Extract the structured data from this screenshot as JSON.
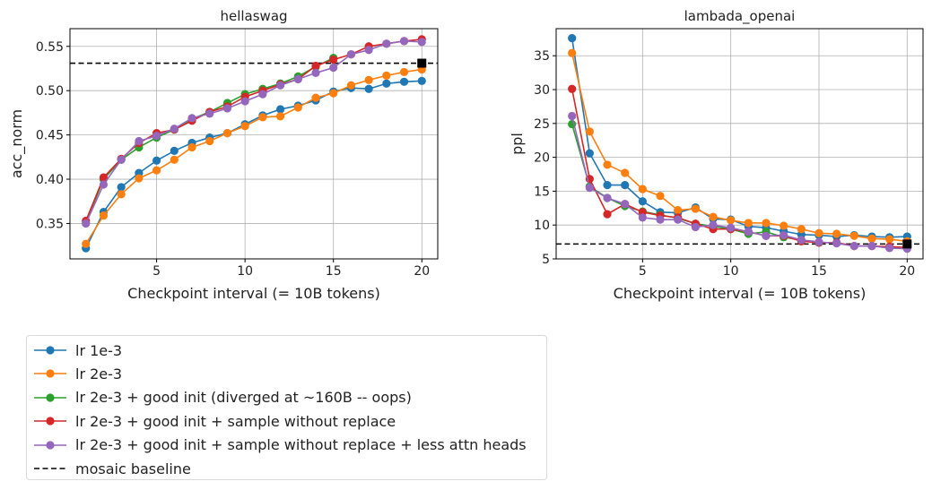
{
  "legend": {
    "items": [
      {
        "label": "lr 1e-3",
        "color": "#1f77b4",
        "style": "line-marker"
      },
      {
        "label": "lr 2e-3",
        "color": "#ff7f0e",
        "style": "line-marker"
      },
      {
        "label": "lr 2e-3 + good init (diverged at ~160B -- oops)",
        "color": "#2ca02c",
        "style": "line-marker"
      },
      {
        "label": "lr 2e-3 + good init + sample without replace",
        "color": "#d62728",
        "style": "line-marker"
      },
      {
        "label": "lr 2e-3 + good init + sample without replace + less attn heads",
        "color": "#9467bd",
        "style": "line-marker"
      },
      {
        "label": "mosaic baseline",
        "color": "#000000",
        "style": "dashed"
      }
    ]
  },
  "chart_data": [
    {
      "type": "line",
      "title": "hellaswag",
      "xlabel": "Checkpoint interval (= 10B tokens)",
      "ylabel": "acc_norm",
      "xlim": [
        0.1,
        20.9
      ],
      "ylim": [
        0.31,
        0.57
      ],
      "xticks": [
        5,
        10,
        15,
        20
      ],
      "yticks": [
        0.35,
        0.4,
        0.45,
        0.5,
        0.55
      ],
      "ytick_labels": [
        "0.35",
        "0.40",
        "0.45",
        "0.50",
        "0.55"
      ],
      "grid": true,
      "baseline": {
        "y": 0.531,
        "marker_x": 20
      },
      "series": [
        {
          "name": "lr 1e-3",
          "color": "#1f77b4",
          "x": [
            1,
            2,
            3,
            4,
            5,
            6,
            7,
            8,
            9,
            10,
            11,
            12,
            13,
            14,
            15,
            16,
            17,
            18,
            19,
            20
          ],
          "y": [
            0.322,
            0.363,
            0.391,
            0.407,
            0.421,
            0.432,
            0.441,
            0.447,
            0.452,
            0.462,
            0.472,
            0.479,
            0.483,
            0.489,
            0.499,
            0.503,
            0.502,
            0.508,
            0.51,
            0.511
          ]
        },
        {
          "name": "lr 2e-3",
          "color": "#ff7f0e",
          "x": [
            1,
            2,
            3,
            4,
            5,
            6,
            7,
            8,
            9,
            10,
            11,
            12,
            13,
            14,
            15,
            16,
            17,
            18,
            19,
            20
          ],
          "y": [
            0.327,
            0.359,
            0.383,
            0.401,
            0.41,
            0.422,
            0.436,
            0.443,
            0.452,
            0.46,
            0.47,
            0.471,
            0.481,
            0.492,
            0.497,
            0.506,
            0.512,
            0.517,
            0.521,
            0.524
          ]
        },
        {
          "name": "lr 2e-3 + good init (diverged at ~160B -- oops)",
          "color": "#2ca02c",
          "x": [
            1,
            2,
            3,
            4,
            5,
            6,
            7,
            8,
            9,
            10,
            11,
            12,
            13,
            14,
            15
          ],
          "y": [
            0.351,
            0.4,
            0.422,
            0.436,
            0.447,
            0.456,
            0.468,
            0.476,
            0.486,
            0.496,
            0.502,
            0.508,
            0.516,
            0.527,
            0.537
          ]
        },
        {
          "name": "lr 2e-3 + good init + sample without replace",
          "color": "#d62728",
          "x": [
            1,
            2,
            3,
            4,
            5,
            6,
            7,
            8,
            9,
            10,
            11,
            12,
            13,
            14,
            15,
            16,
            17,
            18,
            19,
            20
          ],
          "y": [
            0.353,
            0.402,
            0.423,
            0.441,
            0.452,
            0.456,
            0.466,
            0.476,
            0.482,
            0.493,
            0.5,
            0.507,
            0.513,
            0.528,
            0.535,
            0.541,
            0.55,
            0.553,
            0.556,
            0.558
          ]
        },
        {
          "name": "lr 2e-3 + good init + sample without replace + less attn heads",
          "color": "#9467bd",
          "x": [
            1,
            2,
            3,
            4,
            5,
            6,
            7,
            8,
            9,
            10,
            11,
            12,
            13,
            14,
            15,
            16,
            17,
            18,
            19,
            20
          ],
          "y": [
            0.35,
            0.394,
            0.422,
            0.443,
            0.449,
            0.457,
            0.469,
            0.474,
            0.48,
            0.488,
            0.496,
            0.506,
            0.513,
            0.52,
            0.526,
            0.541,
            0.546,
            0.553,
            0.556,
            0.555
          ]
        }
      ]
    },
    {
      "type": "line",
      "title": "lambada_openai",
      "xlabel": "Checkpoint interval (= 10B tokens)",
      "ylabel": "ppl",
      "xlim": [
        0.1,
        20.9
      ],
      "ylim": [
        5,
        39
      ],
      "xticks": [
        5,
        10,
        15,
        20
      ],
      "yticks": [
        5,
        10,
        15,
        20,
        25,
        30,
        35
      ],
      "ytick_labels": [
        "5",
        "10",
        "15",
        "20",
        "25",
        "30",
        "35"
      ],
      "grid": true,
      "baseline": {
        "y": 7.2,
        "marker_x": 20
      },
      "series": [
        {
          "name": "lr 1e-3",
          "color": "#1f77b4",
          "x": [
            1,
            2,
            3,
            4,
            5,
            6,
            7,
            8,
            9,
            10,
            11,
            12,
            13,
            14,
            15,
            16,
            17,
            18,
            19,
            20
          ],
          "y": [
            37.6,
            20.6,
            15.9,
            15.9,
            13.5,
            11.9,
            11.8,
            12.6,
            10.9,
            10.8,
            9.8,
            9.6,
            9.1,
            8.6,
            8.5,
            8.3,
            8.5,
            8.3,
            8.2,
            8.3
          ]
        },
        {
          "name": "lr 2e-3",
          "color": "#ff7f0e",
          "x": [
            1,
            2,
            3,
            4,
            5,
            6,
            7,
            8,
            9,
            10,
            11,
            12,
            13,
            14,
            15,
            16,
            17,
            18,
            19,
            20
          ],
          "y": [
            35.4,
            23.8,
            18.9,
            17.7,
            15.3,
            14.3,
            12.2,
            12.4,
            11.2,
            10.7,
            10.3,
            10.3,
            9.9,
            9.4,
            8.8,
            8.7,
            8.4,
            8.0,
            7.9,
            7.6
          ]
        },
        {
          "name": "lr 2e-3 + good init (diverged at ~160B -- oops)",
          "color": "#2ca02c",
          "x": [
            1,
            2,
            3,
            4,
            5,
            6,
            7,
            8,
            9,
            10,
            11,
            12,
            13,
            14,
            15
          ],
          "y": [
            24.9,
            15.7,
            14.0,
            12.8,
            12.0,
            11.5,
            11.0,
            10.2,
            9.8,
            9.4,
            8.7,
            9.0,
            8.2,
            7.8,
            7.4
          ]
        },
        {
          "name": "lr 2e-3 + good init + sample without replace",
          "color": "#d62728",
          "x": [
            1,
            2,
            3,
            4,
            5,
            6,
            7,
            8,
            9,
            10,
            11,
            12,
            13,
            14,
            15,
            16,
            17,
            18,
            19,
            20
          ],
          "y": [
            30.1,
            16.8,
            11.6,
            13.1,
            11.9,
            11.4,
            11.1,
            10.2,
            9.4,
            9.4,
            9.0,
            8.4,
            8.4,
            7.6,
            7.4,
            7.4,
            6.9,
            6.9,
            6.8,
            6.7
          ]
        },
        {
          "name": "lr 2e-3 + good init + sample without replace + less attn heads",
          "color": "#9467bd",
          "x": [
            1,
            2,
            3,
            4,
            5,
            6,
            7,
            8,
            9,
            10,
            11,
            12,
            13,
            14,
            15,
            16,
            17,
            18,
            19,
            20
          ],
          "y": [
            26.1,
            15.5,
            14.0,
            13.1,
            11.1,
            10.8,
            10.8,
            9.7,
            10.0,
            9.6,
            9.0,
            8.4,
            8.5,
            7.8,
            7.5,
            7.3,
            6.9,
            6.9,
            6.6,
            6.5
          ]
        }
      ]
    }
  ]
}
